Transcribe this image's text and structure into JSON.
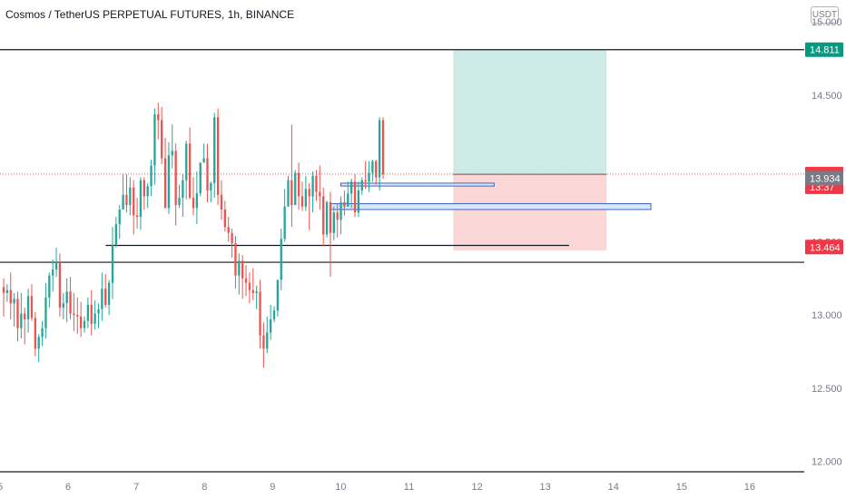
{
  "header": {
    "title": "Cosmos / TetherUS PERPETUAL FUTURES, 1h, BINANCE",
    "currency": "USDT"
  },
  "chart_data": {
    "type": "candlestick",
    "y_axis": {
      "range": [
        11.93,
        15.15
      ],
      "ticks": [
        15.0,
        14.5,
        13.5,
        13.0,
        12.5,
        12.0
      ],
      "tick_labels": [
        "15.000",
        "14.500",
        "13.500",
        "13.000",
        "12.500",
        "12.000"
      ]
    },
    "x_axis": {
      "range": [
        5.0,
        16.8
      ],
      "ticks": [
        5,
        6,
        7,
        8,
        9,
        10,
        11,
        12,
        13,
        14,
        15,
        16
      ],
      "tick_labels": [
        "5",
        "6",
        "7",
        "8",
        "9",
        "10",
        "11",
        "12",
        "13",
        "14",
        "15",
        "16"
      ]
    },
    "price_labels": [
      {
        "value": 14.811,
        "text": "14.811",
        "color": "#089981"
      },
      {
        "value": 13.962,
        "text": "13.962",
        "sub": "13:37",
        "color": "#f23645"
      },
      {
        "value": 13.934,
        "text": "13.934",
        "color": "#787b86"
      },
      {
        "value": 13.464,
        "text": "13.464",
        "color": "#f23645"
      }
    ],
    "horizontal_lines": [
      {
        "y": 14.811,
        "x_from": 5.0,
        "x_to": 16.8
      },
      {
        "y": 13.36,
        "x_from": 5.0,
        "x_to": 16.8
      },
      {
        "y": 13.475,
        "x_from": 6.55,
        "x_to": 13.35
      }
    ],
    "current_price": 13.962,
    "position": {
      "x_from": 11.65,
      "x_to": 13.9,
      "entry": 13.96,
      "target": 14.811,
      "stop": 13.44
    },
    "zones": [
      {
        "x_from": 10.0,
        "x_to": 12.25,
        "y_top": 13.9,
        "y_bottom": 13.88
      },
      {
        "x_from": 9.85,
        "x_to": 14.55,
        "y_top": 13.76,
        "y_bottom": 13.72
      }
    ],
    "colors": {
      "up": "#26a69a",
      "down": "#ef5350",
      "target_fill": "#cdeae6",
      "stop_fill": "#fbd6d6",
      "zone_border": "#3a63c8",
      "zone_fill": "#dbe7f7"
    },
    "candles": [
      [
        13.19,
        13.15,
        13.25,
        12.99
      ],
      [
        13.15,
        13.17,
        13.21,
        13.09
      ],
      [
        13.17,
        13.08,
        13.29,
        12.97
      ],
      [
        13.08,
        13.11,
        13.15,
        12.92
      ],
      [
        13.11,
        12.91,
        13.16,
        12.82
      ],
      [
        12.91,
        13.01,
        13.15,
        12.84
      ],
      [
        13.01,
        12.97,
        13.05,
        12.8
      ],
      [
        12.97,
        13.13,
        13.18,
        12.88
      ],
      [
        13.13,
        12.98,
        13.21,
        12.96
      ],
      [
        12.98,
        12.77,
        13.02,
        12.72
      ],
      [
        12.77,
        12.85,
        12.87,
        12.68
      ],
      [
        12.85,
        12.91,
        12.96,
        12.79
      ],
      [
        12.91,
        13.12,
        13.22,
        12.84
      ],
      [
        13.12,
        13.27,
        13.29,
        13.05
      ],
      [
        13.27,
        13.31,
        13.38,
        13.16
      ],
      [
        13.31,
        13.36,
        13.46,
        13.26
      ],
      [
        13.36,
        13.05,
        13.42,
        12.99
      ],
      [
        13.05,
        13.08,
        13.15,
        12.97
      ],
      [
        13.08,
        13.16,
        13.25,
        12.95
      ],
      [
        13.16,
        13.01,
        13.26,
        12.97
      ],
      [
        13.01,
        13.0,
        13.15,
        12.89
      ],
      [
        13.0,
        12.99,
        13.12,
        12.87
      ],
      [
        12.99,
        12.91,
        13.09,
        12.85
      ],
      [
        12.91,
        12.96,
        12.99,
        12.88
      ],
      [
        12.96,
        13.07,
        13.12,
        12.91
      ],
      [
        13.07,
        12.94,
        13.17,
        12.86
      ],
      [
        12.94,
        13.01,
        13.1,
        12.9
      ],
      [
        13.01,
        13.04,
        13.08,
        12.91
      ],
      [
        13.04,
        13.18,
        13.29,
        12.96
      ],
      [
        13.18,
        13.07,
        13.28,
        13.05
      ],
      [
        13.07,
        13.22,
        13.24,
        13.0
      ],
      [
        13.22,
        13.48,
        13.6,
        13.11
      ],
      [
        13.48,
        13.62,
        13.67,
        13.46
      ],
      [
        13.62,
        13.72,
        13.75,
        13.52
      ],
      [
        13.72,
        13.82,
        13.96,
        13.72
      ],
      [
        13.82,
        13.75,
        13.96,
        13.7
      ],
      [
        13.75,
        13.87,
        13.94,
        13.68
      ],
      [
        13.87,
        13.68,
        13.92,
        13.55
      ],
      [
        13.68,
        13.67,
        13.8,
        13.59
      ],
      [
        13.67,
        13.92,
        13.94,
        13.58
      ],
      [
        13.92,
        13.81,
        13.94,
        13.72
      ],
      [
        13.81,
        13.88,
        13.9,
        13.73
      ],
      [
        13.88,
        14.02,
        14.06,
        13.81
      ],
      [
        14.02,
        14.37,
        14.41,
        13.89
      ],
      [
        14.37,
        14.33,
        14.45,
        14.2
      ],
      [
        14.33,
        14.07,
        14.42,
        14.03
      ],
      [
        14.07,
        13.73,
        14.21,
        13.73
      ],
      [
        13.73,
        14.09,
        14.18,
        13.69
      ],
      [
        14.09,
        14.12,
        14.3,
        14.0
      ],
      [
        14.12,
        13.75,
        14.17,
        13.61
      ],
      [
        13.75,
        13.8,
        13.89,
        13.73
      ],
      [
        13.8,
        13.92,
        13.96,
        13.67
      ],
      [
        13.92,
        14.17,
        14.19,
        13.79
      ],
      [
        14.17,
        13.8,
        14.28,
        13.79
      ],
      [
        13.8,
        13.73,
        13.94,
        13.68
      ],
      [
        13.73,
        13.83,
        13.98,
        13.62
      ],
      [
        13.83,
        14.04,
        14.04,
        13.81
      ],
      [
        14.04,
        14.07,
        14.17,
        14.04
      ],
      [
        14.07,
        13.85,
        14.17,
        13.77
      ],
      [
        13.85,
        13.9,
        13.91,
        13.77
      ],
      [
        13.9,
        14.35,
        14.38,
        13.8
      ],
      [
        14.35,
        13.82,
        14.41,
        13.75
      ],
      [
        13.82,
        13.72,
        13.92,
        13.65
      ],
      [
        13.72,
        13.6,
        13.78,
        13.57
      ],
      [
        13.6,
        13.56,
        13.67,
        13.5
      ],
      [
        13.56,
        13.49,
        13.59,
        13.39
      ],
      [
        13.49,
        13.27,
        13.54,
        13.18
      ],
      [
        13.27,
        13.37,
        13.42,
        13.14
      ],
      [
        13.37,
        13.25,
        13.41,
        13.11
      ],
      [
        13.25,
        13.22,
        13.34,
        13.13
      ],
      [
        13.22,
        13.17,
        13.29,
        13.08
      ],
      [
        13.17,
        13.15,
        13.32,
        13.1
      ],
      [
        13.15,
        13.16,
        13.2,
        13.04
      ],
      [
        13.16,
        12.86,
        13.24,
        12.77
      ],
      [
        12.86,
        12.77,
        12.95,
        12.64
      ],
      [
        12.77,
        12.88,
        12.99,
        12.74
      ],
      [
        12.88,
        12.97,
        13.07,
        12.83
      ],
      [
        12.97,
        13.03,
        13.06,
        12.95
      ],
      [
        13.03,
        13.24,
        13.24,
        12.99
      ],
      [
        13.24,
        13.52,
        13.59,
        13.17
      ],
      [
        13.52,
        13.74,
        13.86,
        13.5
      ],
      [
        13.74,
        13.92,
        13.95,
        13.74
      ],
      [
        13.92,
        13.75,
        14.3,
        13.6
      ],
      [
        13.75,
        13.97,
        13.99,
        13.76
      ],
      [
        13.97,
        13.81,
        14.04,
        13.72
      ],
      [
        13.81,
        13.74,
        13.91,
        13.71
      ],
      [
        13.74,
        13.86,
        13.95,
        13.71
      ],
      [
        13.86,
        13.81,
        13.9,
        13.58
      ],
      [
        13.81,
        13.95,
        13.98,
        13.7
      ],
      [
        13.95,
        13.84,
        13.99,
        13.78
      ],
      [
        13.84,
        13.81,
        14.02,
        13.72
      ],
      [
        13.81,
        13.55,
        13.87,
        13.47
      ],
      [
        13.55,
        13.77,
        13.78,
        13.53
      ],
      [
        13.77,
        13.56,
        13.84,
        13.26
      ],
      [
        13.56,
        13.7,
        13.74,
        13.51
      ],
      [
        13.7,
        13.65,
        13.76,
        13.53
      ],
      [
        13.65,
        13.77,
        13.81,
        13.55
      ],
      [
        13.77,
        13.74,
        13.85,
        13.68
      ],
      [
        13.74,
        13.83,
        13.91,
        13.74
      ],
      [
        13.83,
        13.91,
        13.93,
        13.73
      ],
      [
        13.91,
        13.7,
        13.96,
        13.67
      ],
      [
        13.7,
        13.85,
        13.91,
        13.67
      ],
      [
        13.85,
        13.92,
        13.94,
        13.82
      ],
      [
        13.92,
        13.91,
        14.05,
        13.86
      ],
      [
        13.91,
        13.97,
        14.05,
        13.84
      ],
      [
        13.97,
        14.05,
        14.06,
        13.91
      ],
      [
        14.05,
        13.94,
        14.06,
        13.89
      ],
      [
        13.94,
        14.33,
        14.35,
        13.85
      ],
      [
        14.33,
        13.96,
        14.35,
        13.93
      ]
    ]
  }
}
